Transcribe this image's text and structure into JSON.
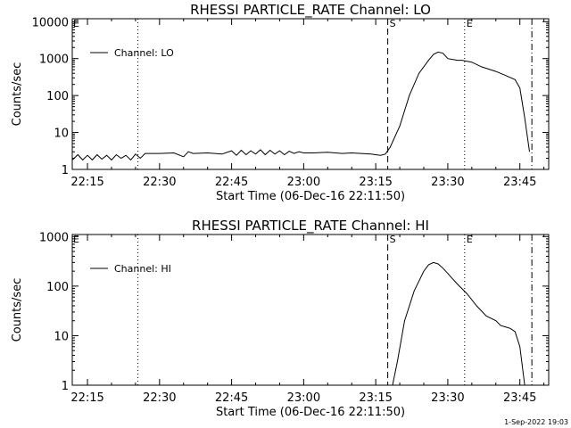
{
  "footer_timestamp": "1-Sep-2022 19:03",
  "chart_data": [
    {
      "type": "line",
      "title": "RHESSI PARTICLE_RATE Channel: LO",
      "xlabel": "Start Time (06-Dec-16 22:11:50)",
      "ylabel": "Counts/sec",
      "yscale": "log",
      "x_ticks": [
        "22:15",
        "22:30",
        "22:45",
        "23:00",
        "23:15",
        "23:30",
        "23:45"
      ],
      "y_ticks": [
        "1",
        "10",
        "100",
        "1000",
        "10000"
      ],
      "xlim": [
        "22:11:50",
        "23:51:00"
      ],
      "ylim": [
        1,
        12000
      ],
      "legend": {
        "position": "top-left",
        "label": "Channel: LO"
      },
      "markers": [
        {
          "time": "22:25:30",
          "style": "dotted",
          "label": ""
        },
        {
          "time": "23:17:30",
          "style": "dashed",
          "label": "S"
        },
        {
          "time": "23:33:30",
          "style": "dotted",
          "label": "E"
        },
        {
          "time": "23:47:30",
          "style": "dashdot",
          "label": ""
        }
      ],
      "series": [
        {
          "name": "Channel: LO",
          "x": [
            "22:11:50",
            "22:13:00",
            "22:14:00",
            "22:15:00",
            "22:16:00",
            "22:17:00",
            "22:18:00",
            "22:19:00",
            "22:20:00",
            "22:21:00",
            "22:22:00",
            "22:23:00",
            "22:24:00",
            "22:25:00",
            "22:26:00",
            "22:27:00",
            "22:30:00",
            "22:33:00",
            "22:35:00",
            "22:36:00",
            "22:37:00",
            "22:40:00",
            "22:43:00",
            "22:45:00",
            "22:46:00",
            "22:47:00",
            "22:48:00",
            "22:49:00",
            "22:50:00",
            "22:51:00",
            "22:52:00",
            "22:53:00",
            "22:54:00",
            "22:55:00",
            "22:56:00",
            "22:57:00",
            "22:58:00",
            "22:59:00",
            "23:00:00",
            "23:02:00",
            "23:05:00",
            "23:08:00",
            "23:10:00",
            "23:12:00",
            "23:14:00",
            "23:15:00",
            "23:16:00",
            "23:17:00",
            "23:18:00",
            "23:20:00",
            "23:22:00",
            "23:24:00",
            "23:26:00",
            "23:27:00",
            "23:28:00",
            "23:29:00",
            "23:30:00",
            "23:32:00",
            "23:33:00",
            "23:35:00",
            "23:37:00",
            "23:40:00",
            "23:42:00",
            "23:44:00",
            "23:45:00",
            "23:46:00",
            "23:47:00"
          ],
          "y": [
            1.8,
            2.5,
            1.8,
            2.4,
            1.8,
            2.5,
            1.9,
            2.4,
            1.8,
            2.5,
            2.0,
            2.4,
            1.8,
            2.6,
            2.0,
            2.7,
            2.7,
            2.8,
            2.2,
            3.0,
            2.7,
            2.8,
            2.6,
            3.2,
            2.4,
            3.3,
            2.5,
            3.2,
            2.6,
            3.4,
            2.5,
            3.3,
            2.6,
            3.2,
            2.5,
            3.1,
            2.7,
            3.0,
            2.8,
            2.8,
            2.9,
            2.7,
            2.8,
            2.7,
            2.6,
            2.5,
            2.4,
            2.6,
            4.0,
            15,
            100,
            400,
            900,
            1300,
            1500,
            1400,
            1000,
            900,
            900,
            800,
            600,
            450,
            350,
            270,
            160,
            25,
            3
          ]
        }
      ]
    },
    {
      "type": "line",
      "title": "RHESSI PARTICLE_RATE Channel: HI",
      "xlabel": "Start Time (06-Dec-16 22:11:50)",
      "ylabel": "Counts/sec",
      "yscale": "log",
      "x_ticks": [
        "22:15",
        "22:30",
        "22:45",
        "23:00",
        "23:15",
        "23:30",
        "23:45"
      ],
      "y_ticks": [
        "1",
        "10",
        "100",
        "1000"
      ],
      "xlim": [
        "22:11:50",
        "23:51:00"
      ],
      "ylim": [
        1,
        1100
      ],
      "legend": {
        "position": "top-left",
        "label": "Channel: HI"
      },
      "markers": [
        {
          "time": "22:25:30",
          "style": "dotted",
          "label": ""
        },
        {
          "time": "23:17:30",
          "style": "dashed",
          "label": "S"
        },
        {
          "time": "23:33:30",
          "style": "dotted",
          "label": "E"
        },
        {
          "time": "23:47:30",
          "style": "dashdot",
          "label": ""
        }
      ],
      "series": [
        {
          "name": "Channel: HI",
          "x": [
            "23:18:30",
            "23:19:30",
            "23:21:00",
            "23:23:00",
            "23:25:00",
            "23:26:00",
            "23:27:00",
            "23:28:00",
            "23:29:00",
            "23:30:00",
            "23:31:00",
            "23:32:00",
            "23:34:00",
            "23:36:00",
            "23:38:00",
            "23:40:00",
            "23:41:00",
            "23:42:00",
            "23:43:00",
            "23:44:00",
            "23:45:00",
            "23:46:00"
          ],
          "y": [
            1,
            3,
            20,
            80,
            200,
            270,
            300,
            280,
            230,
            180,
            140,
            110,
            70,
            40,
            25,
            20,
            16,
            15,
            14,
            12,
            6,
            1
          ]
        }
      ]
    }
  ]
}
